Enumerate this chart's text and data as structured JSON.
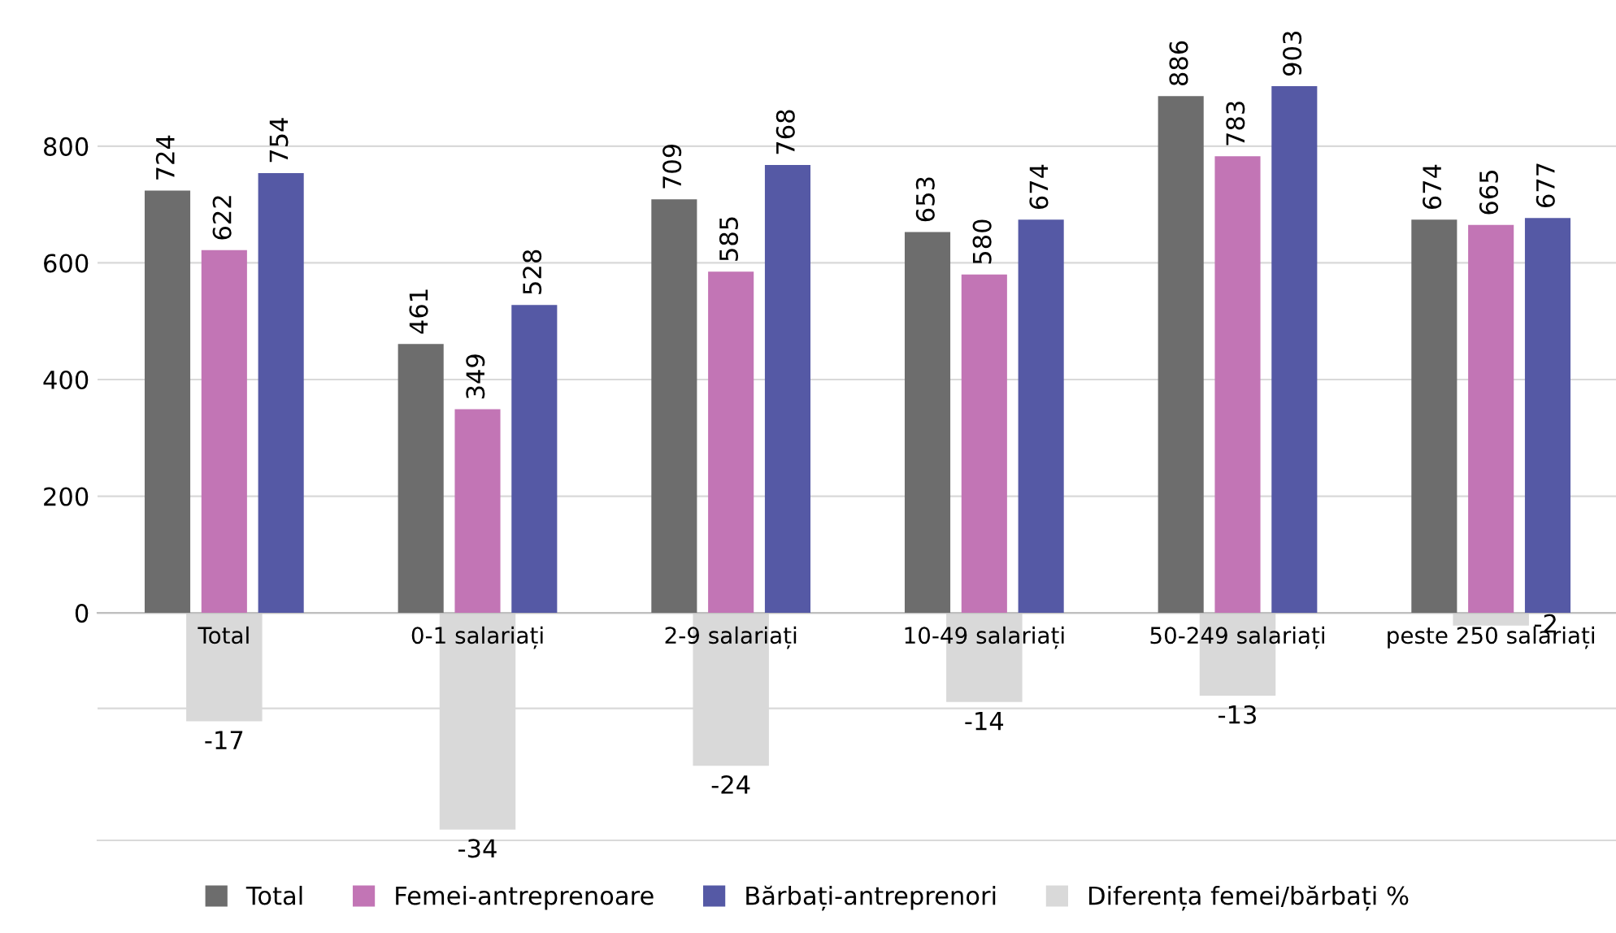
{
  "chart_data": {
    "type": "bar",
    "categories": [
      "Total",
      "0-1 salariați",
      "2-9 salariați",
      "10-49 salariați",
      "50-249 salariați",
      "peste 250 salariați"
    ],
    "series": [
      {
        "name": "Total",
        "color": "#6d6d6d",
        "values": [
          724,
          461,
          709,
          653,
          886,
          674
        ]
      },
      {
        "name": "Femei-antreprenoare",
        "color": "#c275b5",
        "values": [
          622,
          349,
          585,
          580,
          783,
          665
        ]
      },
      {
        "name": "Bărbați-antreprenori",
        "color": "#5559a5",
        "values": [
          754,
          528,
          768,
          674,
          903,
          677
        ]
      },
      {
        "name": "Diferența femei/bărbați %",
        "color": "#d9d9d9",
        "axis": "y2",
        "values": [
          -17,
          -34,
          -24,
          -14,
          -13,
          -2
        ]
      }
    ],
    "ylim": [
      -390,
      903
    ],
    "yticks": [
      0,
      200,
      400,
      600,
      800
    ],
    "y2ticks": [
      {
        "value": -15,
        "label": null
      }
    ],
    "grid": "y",
    "legend": "bottom",
    "data_labels": true
  }
}
